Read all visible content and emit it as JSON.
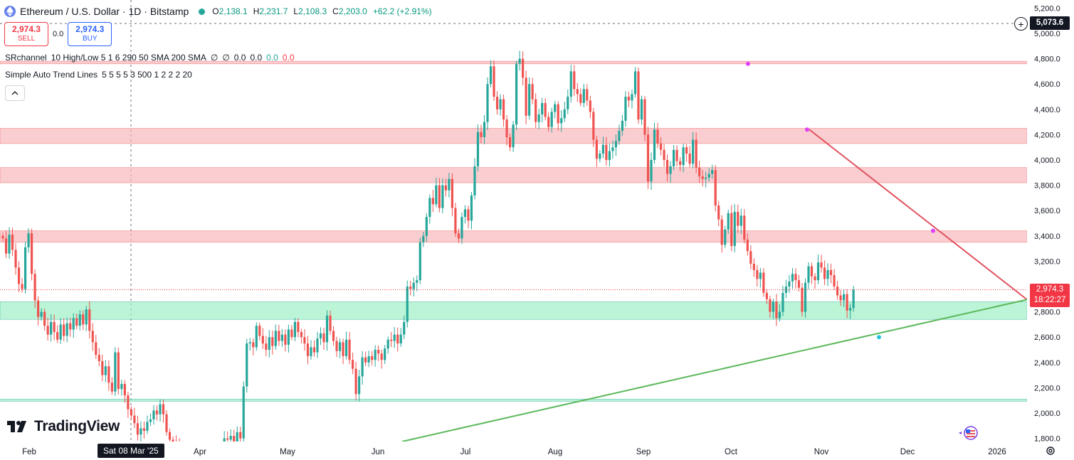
{
  "header": {
    "title": "Ethereum / U.S. Dollar · 1D · Bitstamp",
    "o_key": "O",
    "o_val": "2,138.1",
    "h_key": "H",
    "h_val": "2,231.7",
    "l_key": "L",
    "l_val": "2,108.3",
    "c_key": "C",
    "c_val": "2,203.0",
    "change": "+62.2 (+2.91%)"
  },
  "trade": {
    "sell_price": "2,974.3",
    "sell_label": "SELL",
    "spread": "0.0",
    "buy_price": "2,974.3",
    "buy_label": "BUY"
  },
  "indicators": {
    "srchannel_name": "SRchannel",
    "srchannel_params": "10 High/Low 5 1 6 290 50 SMA 200 SMA",
    "srchannel_vals": [
      "∅",
      "∅",
      "0.0",
      "0.0"
    ],
    "srchannel_green": "0.0",
    "srchannel_red": "0.0",
    "trend_name": "Simple Auto Trend Lines",
    "trend_params": "5 5 5 5 3 500 1 2 2 2 20"
  },
  "brand": {
    "name": "TradingView"
  },
  "price_axis": {
    "crosshair_price": "5,073.6",
    "last_price": "2,974.3",
    "countdown": "18:22:27"
  },
  "time_axis": {
    "crosshair_date": "Sat 08 Mar '25"
  },
  "colors": {
    "up": "#26a69a",
    "down": "#ef5350",
    "resistance_zone": "#f7b2b7",
    "support_zone": "#9eefc5",
    "downtrend": "#e0525f",
    "uptrend": "#5cb85c"
  },
  "chart_data": {
    "type": "candlestick",
    "symbol": "ETHUSD",
    "timeframe": "1D",
    "ylim": [
      1750,
      5250
    ],
    "y_ticks": [
      "1,800.0",
      "2,000.0",
      "2,200.0",
      "2,400.0",
      "2,600.0",
      "2,800.0",
      "3,000.0",
      "3,200.0",
      "3,400.0",
      "3,600.0",
      "3,800.0",
      "4,000.0",
      "4,200.0",
      "4,400.0",
      "4,600.0",
      "4,800.0",
      "5,000.0",
      "5,200.0"
    ],
    "x_ticks": [
      "Feb",
      "Apr",
      "May",
      "Jun",
      "Jul",
      "Aug",
      "Sep",
      "Oct",
      "Nov",
      "Dec",
      "2026"
    ],
    "closes": [
      3380,
      3260,
      3410,
      3290,
      3150,
      3020,
      2980,
      3310,
      3420,
      3100,
      2890,
      2760,
      2800,
      2690,
      2620,
      2720,
      2640,
      2580,
      2700,
      2610,
      2710,
      2660,
      2750,
      2690,
      2780,
      2700,
      2820,
      2650,
      2560,
      2460,
      2410,
      2300,
      2370,
      2240,
      2170,
      2480,
      2190,
      2230,
      2140,
      2030,
      1980,
      1920,
      1830,
      1880,
      1860,
      1930,
      1950,
      2020,
      1990,
      2070,
      1990,
      1850,
      1790,
      1760,
      1740,
      1720,
      1640,
      1580,
      1560,
      1610,
      1590,
      1540,
      1600,
      1560,
      1620,
      1580,
      1640,
      1610,
      1660,
      1800,
      1790,
      1820,
      1770,
      1850,
      1800,
      2210,
      2550,
      2560,
      2520,
      2690,
      2610,
      2550,
      2500,
      2600,
      2530,
      2650,
      2570,
      2620,
      2540,
      2660,
      2600,
      2720,
      2640,
      2600,
      2550,
      2450,
      2520,
      2480,
      2590,
      2630,
      2560,
      2770,
      2650,
      2570,
      2490,
      2560,
      2450,
      2580,
      2420,
      2350,
      2150,
      2290,
      2440,
      2400,
      2450,
      2420,
      2500,
      2470,
      2420,
      2510,
      2580,
      2570,
      2620,
      2550,
      2620,
      2720,
      3000,
      2980,
      3030,
      3050,
      3350,
      3400,
      3550,
      3700,
      3650,
      3800,
      3620,
      3800,
      3760,
      3850,
      3620,
      3420,
      3380,
      3550,
      3610,
      3520,
      3720,
      3950,
      4220,
      4180,
      4300,
      4600,
      4740,
      4500,
      4400,
      4480,
      4320,
      4180,
      4100,
      4280,
      4760,
      4800,
      4650,
      4350,
      4600,
      4480,
      4300,
      4360,
      4450,
      4340,
      4260,
      4380,
      4440,
      4290,
      4330,
      4400,
      4500,
      4700,
      4560,
      4520,
      4450,
      4560,
      4470,
      4380,
      4160,
      4010,
      4050,
      4120,
      4000,
      4070,
      4100,
      4150,
      4230,
      4310,
      4500,
      4470,
      4520,
      4700,
      4320,
      4480,
      4200,
      3830,
      4000,
      4240,
      4130,
      4080,
      4000,
      3890,
      3950,
      4080,
      3990,
      3960,
      4100,
      4050,
      3970,
      4160,
      3940,
      3870,
      3850,
      3860,
      3890,
      3920,
      3640,
      3530,
      3330,
      3450,
      3580,
      3320,
      3590,
      3480,
      3560,
      3370,
      3280,
      3180,
      3130,
      3060,
      3110,
      2950,
      2900,
      2800,
      2880,
      2750,
      2800,
      2950,
      3000,
      3040,
      3100,
      3050,
      2990,
      2800,
      3030,
      3160,
      3080,
      3050,
      3190,
      3150,
      3060,
      3130,
      3090,
      3000,
      2930,
      2890,
      2940,
      2810,
      2830,
      2975
    ],
    "annotations": {
      "resistance_zones": [
        [
          4760,
          4780
        ],
        [
          4130,
          4250
        ],
        [
          3820,
          3940
        ],
        [
          3350,
          3440
        ]
      ],
      "support_zones": [
        [
          2740,
          2880
        ],
        [
          2100,
          2110
        ]
      ],
      "downtrend_line": {
        "from": [
          212,
          4240
        ],
        "to": [
          288,
          2880
        ]
      },
      "uptrend_line": {
        "from": [
          49,
          1750
        ],
        "to": [
          288,
          2880
        ]
      },
      "pivot_high": 4760,
      "pivot_low": 2600
    }
  }
}
